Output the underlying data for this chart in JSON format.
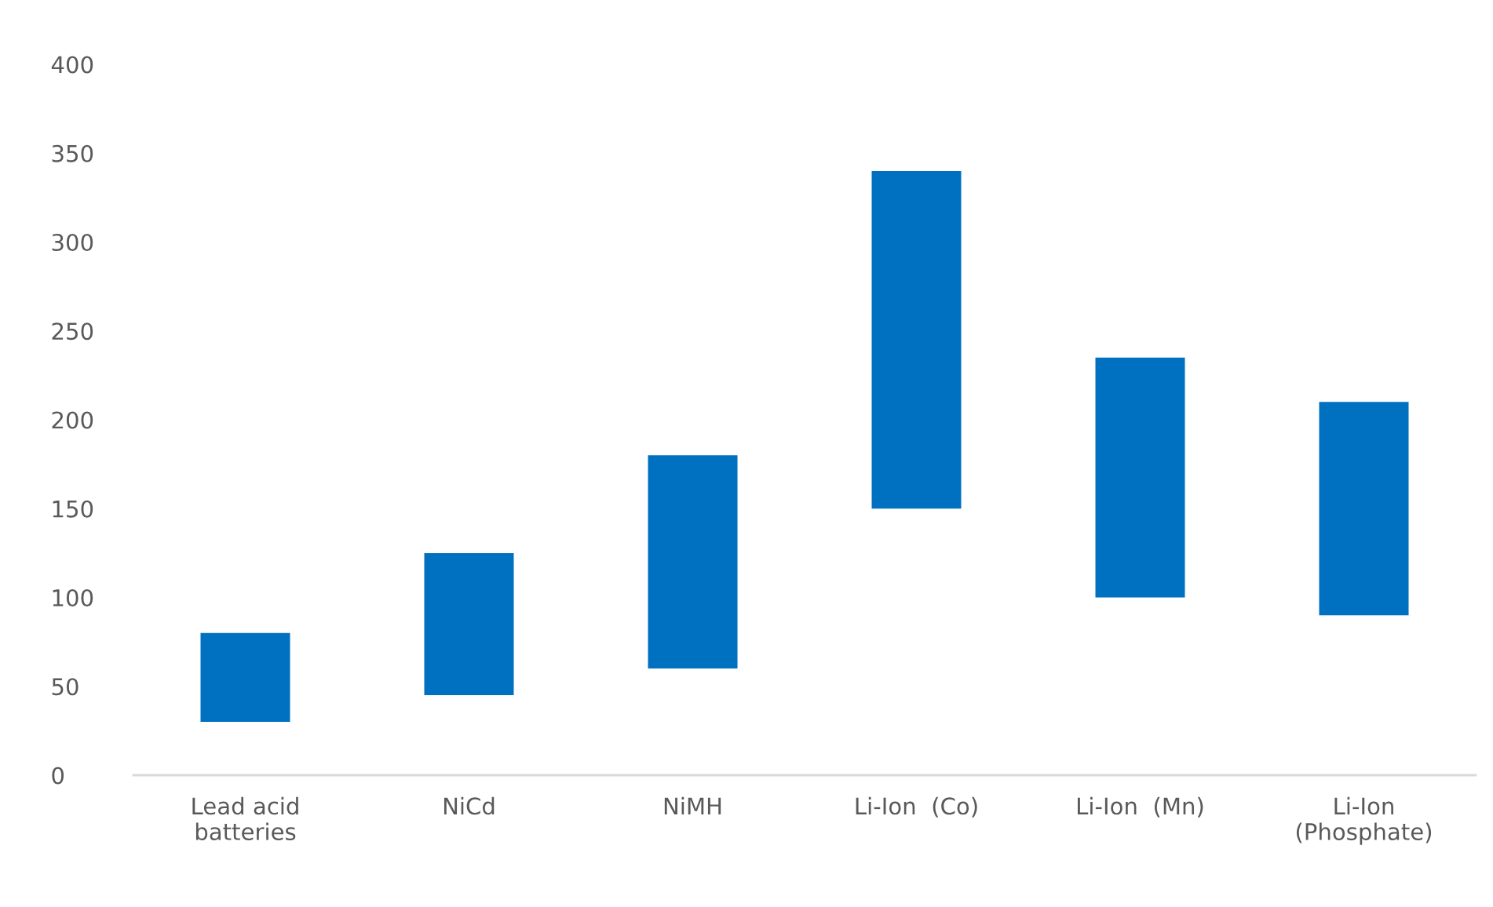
{
  "chart_data": {
    "type": "bar",
    "categories": [
      "Lead acid\nbatteries",
      "NiCd",
      "NiMH",
      "Li-Ion  (Co)",
      "Li-Ion  (Mn)",
      "Li-Ion\n(Phosphate)"
    ],
    "base": [
      30,
      45,
      60,
      150,
      100,
      90
    ],
    "values": [
      50,
      80,
      120,
      190,
      135,
      120
    ],
    "color": "#0070c0",
    "ylim": [
      0,
      400
    ],
    "yticks": [
      0,
      50,
      100,
      150,
      200,
      250,
      300,
      350,
      400
    ]
  }
}
